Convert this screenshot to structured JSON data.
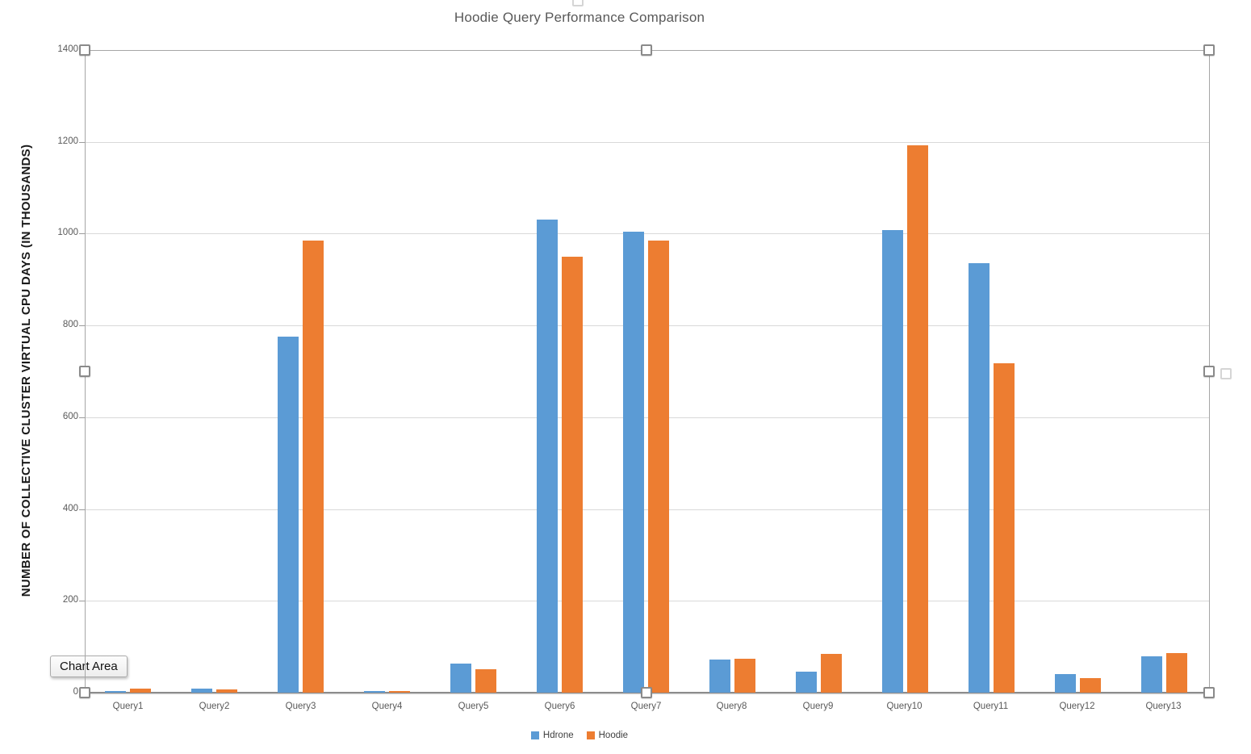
{
  "chart_data": {
    "type": "bar",
    "title": "Hoodie Query Performance Comparison",
    "xlabel": "",
    "ylabel": "NUMBER OF COLLECTIVE CLUSTER VIRTUAL CPU DAYS (IN THOUSANDS)",
    "ylim": [
      0,
      1400
    ],
    "yticks": [
      0,
      200,
      400,
      600,
      800,
      1000,
      1200,
      1400
    ],
    "grid": true,
    "legend_position": "bottom",
    "categories": [
      "Query1",
      "Query2",
      "Query3",
      "Query4",
      "Query5",
      "Query6",
      "Query7",
      "Query8",
      "Query9",
      "Query10",
      "Query11",
      "Query12",
      "Query13"
    ],
    "series": [
      {
        "name": "Hdrone",
        "color": "#5B9BD5",
        "values": [
          4,
          8,
          775,
          4,
          63,
          1030,
          1005,
          72,
          46,
          1008,
          935,
          40,
          79
        ]
      },
      {
        "name": "Hoodie",
        "color": "#ED7D31",
        "values": [
          8,
          7,
          985,
          4,
          51,
          950,
          985,
          73,
          85,
          1193,
          718,
          32,
          87
        ]
      }
    ]
  },
  "selection": {
    "tooltip_label": "Chart Area"
  },
  "colors": {
    "series_hdrone": "#5B9BD5",
    "series_hoodie": "#ED7D31",
    "gridline": "#D9D9D9",
    "axis": "#8C8C8C",
    "text_muted": "#595959"
  }
}
